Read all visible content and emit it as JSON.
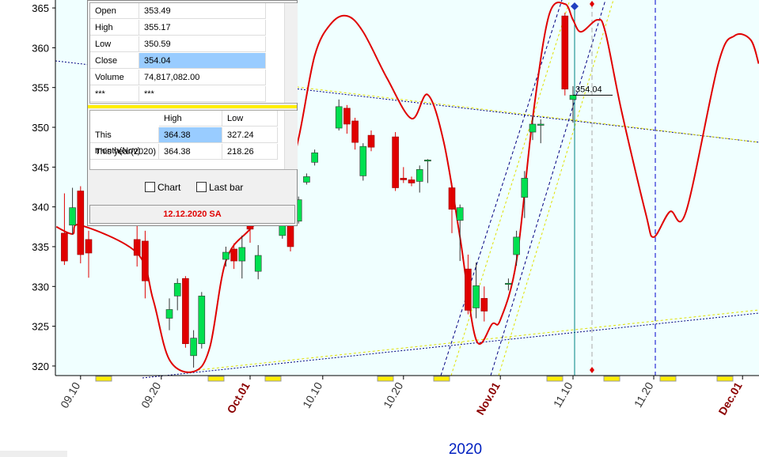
{
  "chart_data": {
    "type": "candlestick",
    "xlabel": "2020",
    "ylim": [
      318.8,
      366.0
    ],
    "yticks": [
      320,
      325,
      330,
      335,
      340,
      345,
      350,
      355,
      360,
      365
    ],
    "xticks": [
      {
        "value": "09.10",
        "label": "09.10"
      },
      {
        "value": "09.20",
        "label": "09.20"
      },
      {
        "value": "10.01",
        "label": "Oct.01"
      },
      {
        "value": "10.10",
        "label": "10.10"
      },
      {
        "value": "10.20",
        "label": "10.20"
      },
      {
        "value": "11.01",
        "label": "Nov.01"
      },
      {
        "value": "11.10",
        "label": "11.10"
      },
      {
        "value": "11.20",
        "label": "11.20"
      },
      {
        "value": "12.01",
        "label": "Dec.01"
      }
    ],
    "up_color": "#00e050",
    "down_color": "#e00000",
    "x": [
      "09.08",
      "09.09",
      "09.10",
      "09.11",
      "09.17",
      "09.18",
      "09.21",
      "09.22",
      "09.23",
      "09.24",
      "09.25",
      "09.28",
      "09.29",
      "09.30",
      "10.01",
      "10.02",
      "10.05",
      "10.06",
      "10.07",
      "10.08",
      "10.09",
      "10.12",
      "10.13",
      "10.14",
      "10.15",
      "10.16",
      "10.19",
      "10.20",
      "10.21",
      "10.22",
      "10.23",
      "10.26",
      "10.27",
      "10.28",
      "10.29",
      "10.30",
      "11.02",
      "11.03",
      "11.04",
      "11.05",
      "11.06",
      "11.09",
      "11.10"
    ],
    "open": [
      336.7,
      337.7,
      342.0,
      335.9,
      335.9,
      335.7,
      326.0,
      328.8,
      331.0,
      321.3,
      322.8,
      333.4,
      334.7,
      333.2,
      337.9,
      331.9,
      336.4,
      337.9,
      338.2,
      343.1,
      345.6,
      349.9,
      352.4,
      350.8,
      343.9,
      349.0,
      348.8,
      343.6,
      343.4,
      343.2,
      345.8,
      342.4,
      338.3,
      332.2,
      327.3,
      328.5,
      330.3,
      334.0,
      341.2,
      349.4,
      350.3,
      364.0,
      353.49
    ],
    "high": [
      341.7,
      342.4,
      342.6,
      337.0,
      338.0,
      337.0,
      328.5,
      331.0,
      331.3,
      324.5,
      329.3,
      335.0,
      335.4,
      336.4,
      339.0,
      335.2,
      338.2,
      338.8,
      341.3,
      344.2,
      347.2,
      353.5,
      352.8,
      351.2,
      348.0,
      349.6,
      349.4,
      345.0,
      343.8,
      345.2,
      346.0,
      343.0,
      340.3,
      334.0,
      333.0,
      330.0,
      331.0,
      337.0,
      344.5,
      351.5,
      351.0,
      364.4,
      355.17
    ],
    "low": [
      332.7,
      336.5,
      332.9,
      331.1,
      332.5,
      328.5,
      324.5,
      327.0,
      322.3,
      319.8,
      322.2,
      332.5,
      332.2,
      331.0,
      335.5,
      330.9,
      336.0,
      334.4,
      337.9,
      342.8,
      345.2,
      349.6,
      349.2,
      347.2,
      343.3,
      347.0,
      342.0,
      343.0,
      342.6,
      341.8,
      343.0,
      336.7,
      333.2,
      326.5,
      326.0,
      325.6,
      329.5,
      332.6,
      338.6,
      348.4,
      348.0,
      354.0,
      350.59
    ],
    "close": [
      333.2,
      339.9,
      334.0,
      334.2,
      333.9,
      330.7,
      327.1,
      330.4,
      322.8,
      323.5,
      328.8,
      334.3,
      333.2,
      334.9,
      337.2,
      333.9,
      337.7,
      335.0,
      340.9,
      343.8,
      346.8,
      352.6,
      350.4,
      348.1,
      347.6,
      347.5,
      342.4,
      343.4,
      343.0,
      344.7,
      345.9,
      339.7,
      339.9,
      327.0,
      330.1,
      326.9,
      330.4,
      336.2,
      343.6,
      350.4,
      350.4,
      354.8,
      354.04
    ],
    "indicator": {
      "color": "#e00000",
      "x": [
        "09.07",
        "09.09",
        "09.10",
        "09.17",
        "09.19",
        "09.21",
        "09.24",
        "09.26",
        "09.28",
        "10.01",
        "10.05",
        "10.07",
        "10.09",
        "10.11",
        "10.13",
        "10.15",
        "10.18",
        "10.21",
        "10.23",
        "10.25",
        "10.27",
        "10.29",
        "10.31",
        "11.01",
        "11.03",
        "11.05",
        "11.07",
        "11.09",
        "11.10",
        "11.11",
        "11.13",
        "11.14",
        "11.16",
        "11.19",
        "11.20",
        "11.22",
        "11.24",
        "11.28",
        "11.30",
        "12.02",
        "12.03"
      ],
      "values": [
        337.5,
        336.6,
        337.7,
        334.2,
        328.3,
        320.8,
        319.3,
        322.3,
        333.2,
        337.2,
        341.2,
        348.6,
        359.0,
        363.0,
        364.0,
        362.0,
        356.1,
        351.1,
        354.1,
        348.1,
        336.2,
        323.3,
        325.3,
        325.8,
        333.2,
        351.1,
        364.0,
        365.5,
        363.5,
        362.0,
        363.5,
        362.0,
        352.1,
        339.2,
        336.2,
        339.4,
        339.4,
        358.0,
        361.5,
        361.0,
        358.0
      ]
    }
  },
  "panel": {
    "quote": {
      "rows": [
        [
          "Open",
          "353.49"
        ],
        [
          "High",
          "355.17"
        ],
        [
          "Low",
          "350.59"
        ],
        [
          "Close",
          "354.04"
        ],
        [
          "Volume",
          "74,817,082.00"
        ],
        [
          "***",
          "***"
        ]
      ]
    },
    "period": {
      "header": [
        "High",
        "Low"
      ],
      "rows": [
        [
          "This month(Nov)",
          "364.38",
          "327.24"
        ],
        [
          "This year(2020)",
          "364.38",
          "218.26"
        ]
      ]
    },
    "checkboxes": [
      "Chart",
      "Last bar"
    ],
    "date_stamp": "12.12.2020 SA"
  }
}
